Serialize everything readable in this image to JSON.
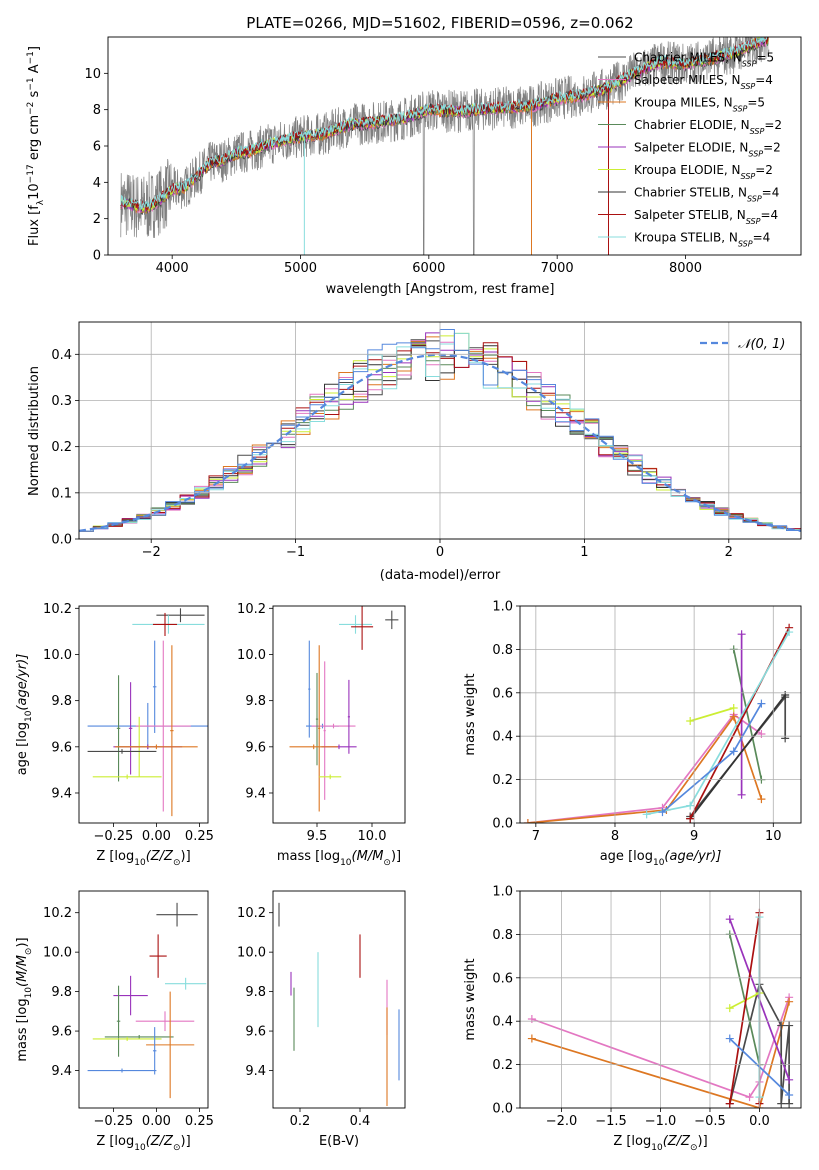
{
  "colors": {
    "grid": "#b0b0b0",
    "data_spectrum": "#7f7f7f",
    "gaussian": "#5588dd"
  },
  "chart_data": [
    {
      "id": "spectrum",
      "type": "line",
      "title": "PLATE=0266, MJD=51602, FIBERID=0596, z=0.062",
      "xlabel": "wavelength [Angstrom, rest frame]",
      "ylabel_main": "Flux [f",
      "ylabel_sub": "λ",
      "ylabel_rest": "10",
      "ylabel_exp": "−17",
      "ylabel_tail": " erg cm",
      "ylabel_exp2": "−2",
      "ylabel_s": " s",
      "ylabel_exp3": "−1",
      "ylabel_end": " A",
      "ylabel_exp4": "−1",
      "ylabel_close": "]",
      "xlim": [
        3500,
        8900
      ],
      "ylim": [
        0,
        12
      ],
      "xticks": [
        4000,
        5000,
        6000,
        7000,
        8000
      ],
      "yticks": [
        0,
        2,
        4,
        6,
        8,
        10
      ],
      "grid": false,
      "legend_position": "right",
      "series": [
        {
          "name": "Chabrier MILES, N",
          "sub": "SSP",
          "n": "=5",
          "color": "#4a4a4a"
        },
        {
          "name": "Salpeter MILES, N",
          "sub": "SSP",
          "n": "=4",
          "color": "#e377c2"
        },
        {
          "name": "Kroupa MILES, N",
          "sub": "SSP",
          "n": "=5",
          "color": "#dd7722"
        },
        {
          "name": "Chabrier ELODIE, N",
          "sub": "SSP",
          "n": "=2",
          "color": "#5a8a5a"
        },
        {
          "name": "Salpeter ELODIE, N",
          "sub": "SSP",
          "n": "=2",
          "color": "#9933bb"
        },
        {
          "name": "Kroupa ELODIE, N",
          "sub": "SSP",
          "n": "=2",
          "color": "#ccee33"
        },
        {
          "name": "Chabrier STELIB, N",
          "sub": "SSP",
          "n": "=4",
          "color": "#333333"
        },
        {
          "name": "Salpeter STELIB, N",
          "sub": "SSP",
          "n": "=4",
          "color": "#aa1111"
        },
        {
          "name": "Kroupa STELIB, N",
          "sub": "SSP",
          "n": "=4",
          "color": "#88dddd"
        }
      ],
      "continuum_model": {
        "wavelength": [
          3600,
          3700,
          3800,
          3900,
          4000,
          4100,
          4200,
          4300,
          4400,
          4500,
          4600,
          4800,
          5000,
          5200,
          5400,
          5600,
          5800,
          6000,
          6200,
          6400,
          6600,
          6800,
          7000,
          7200,
          7400,
          7600,
          7800,
          8000,
          8200,
          8400,
          8600
        ],
        "flux": [
          2.9,
          2.7,
          2.6,
          3.0,
          3.6,
          3.7,
          4.4,
          5.1,
          5.2,
          5.6,
          5.7,
          6.2,
          6.5,
          6.7,
          7.2,
          7.3,
          7.5,
          8.0,
          7.9,
          8.0,
          8.1,
          8.2,
          8.6,
          8.8,
          9.2,
          10.0,
          10.6,
          10.5,
          10.8,
          11.2,
          11.8
        ]
      },
      "data_noise": 1.2,
      "data_range": [
        3600,
        8650
      ]
    },
    {
      "id": "residual-hist",
      "type": "line",
      "xlabel": "(data-model)/error",
      "ylabel": "Normed distribution",
      "xlim": [
        -2.5,
        2.5
      ],
      "ylim": [
        0,
        0.47
      ],
      "xticks": [
        -2,
        -1,
        0,
        1,
        2
      ],
      "xtick_labels": [
        "−2",
        "−1",
        "0",
        "1",
        "2"
      ],
      "yticks": [
        0,
        0.1,
        0.2,
        0.3,
        0.4
      ],
      "ytick_labels": [
        "0.0",
        "0.1",
        "0.2",
        "0.3",
        "0.4"
      ],
      "grid": true,
      "legend_position": "top-right",
      "legend": [
        "𝒩(0, 1)"
      ],
      "bin_width": 0.1,
      "bin_start": -2.5,
      "bin_count": 50
    },
    {
      "id": "age-vs-z",
      "type": "scatter",
      "xlabel": "Z [log",
      "xlabel_sub": "10",
      "xlabel_rest": "(Z/Z",
      "xlabel_sun": "⊙",
      "xlabel_end": ")]",
      "ylabel": "age  [log",
      "ylabel_sub": "10",
      "ylabel_rest": "(age/yr)]",
      "xlim": [
        -0.45,
        0.3
      ],
      "ylim": [
        9.27,
        10.21
      ],
      "xticks": [
        -0.25,
        0.0,
        0.25
      ],
      "xtick_labels": [
        "−0.25",
        "0.00",
        "0.25"
      ],
      "yticks": [
        9.4,
        9.6,
        9.8,
        10.0,
        10.2
      ],
      "ytick_labels": [
        "9.4",
        "9.6",
        "9.8",
        "10.0",
        "10.2"
      ],
      "grid": false,
      "points": [
        {
          "x": 0.14,
          "y": 10.17,
          "xerr": 0.14,
          "yerr": 0.03,
          "color": "#4a4a4a"
        },
        {
          "x": 0.07,
          "y": 10.13,
          "xerr": 0.21,
          "yerr": 0.04,
          "color": "#88dddd"
        },
        {
          "x": 0.05,
          "y": 10.13,
          "xerr": 0.07,
          "yerr": 0.05,
          "color": "#aa1111"
        },
        {
          "x": -0.01,
          "y": 9.86,
          "xerr": 0.01,
          "yerr": 0.2,
          "color": "#5588dd"
        },
        {
          "x": -0.05,
          "y": 9.69,
          "xerr": 0.35,
          "yerr": 0.1,
          "color": "#5588dd"
        },
        {
          "x": 0.04,
          "y": 9.69,
          "xerr": 0.16,
          "yerr": 0.37,
          "color": "#e377c2"
        },
        {
          "x": 0.09,
          "y": 9.67,
          "xerr": 0.01,
          "yerr": 0.37,
          "color": "#dd7722"
        },
        {
          "x": -0.22,
          "y": 9.68,
          "xerr": 0.01,
          "yerr": 0.23,
          "color": "#5a8a5a"
        },
        {
          "x": -0.15,
          "y": 9.68,
          "xerr": 0.01,
          "yerr": 0.2,
          "color": "#9933bb"
        },
        {
          "x": -0.1,
          "y": 9.6,
          "xerr": 0.13,
          "yerr": 0.13,
          "color": "#ccee33"
        },
        {
          "x": -0.05,
          "y": 9.6,
          "xerr": 0.2,
          "yerr": 0.01,
          "color": "#9933bb"
        },
        {
          "x": 0.0,
          "y": 9.6,
          "xerr": 0.24,
          "yerr": 0.01,
          "color": "#dd7722"
        },
        {
          "x": -0.2,
          "y": 9.58,
          "xerr": 0.2,
          "yerr": 0.01,
          "color": "#4a4a4a"
        },
        {
          "x": -0.17,
          "y": 9.47,
          "xerr": 0.2,
          "yerr": 0.01,
          "color": "#ccee33"
        }
      ]
    },
    {
      "id": "age-vs-mass",
      "type": "scatter",
      "xlabel": "mass [log",
      "xlabel_sub": "10",
      "xlabel_rest": "(M/M",
      "xlabel_sun": "⊙",
      "xlabel_end": ")]",
      "xlim": [
        9.1,
        10.3
      ],
      "ylim": [
        9.27,
        10.21
      ],
      "xticks": [
        9.5,
        10.0
      ],
      "xtick_labels": [
        "9.5",
        "10.0"
      ],
      "yticks": [
        9.4,
        9.6,
        9.8,
        10.0,
        10.2
      ],
      "ytick_labels": [
        "9.4",
        "9.6",
        "9.8",
        "10.0",
        "10.2"
      ],
      "grid": false,
      "points": [
        {
          "x": 10.18,
          "y": 10.15,
          "xerr": 0.06,
          "yerr": 0.04,
          "color": "#4a4a4a"
        },
        {
          "x": 9.85,
          "y": 10.13,
          "xerr": 0.15,
          "yerr": 0.04,
          "color": "#88dddd"
        },
        {
          "x": 9.91,
          "y": 10.12,
          "xerr": 0.1,
          "yerr": 0.1,
          "color": "#aa1111"
        },
        {
          "x": 9.43,
          "y": 9.85,
          "xerr": 0.01,
          "yerr": 0.21,
          "color": "#5588dd"
        },
        {
          "x": 9.55,
          "y": 9.69,
          "xerr": 0.15,
          "yerr": 0.01,
          "color": "#5588dd"
        },
        {
          "x": 9.65,
          "y": 9.69,
          "xerr": 0.2,
          "yerr": 0.01,
          "color": "#e377c2"
        },
        {
          "x": 9.52,
          "y": 9.68,
          "xerr": 0.01,
          "yerr": 0.36,
          "color": "#dd7722"
        },
        {
          "x": 9.57,
          "y": 9.67,
          "xerr": 0.01,
          "yerr": 0.3,
          "color": "#e377c2"
        },
        {
          "x": 9.5,
          "y": 9.72,
          "xerr": 0.01,
          "yerr": 0.2,
          "color": "#5a8a5a"
        },
        {
          "x": 9.79,
          "y": 9.73,
          "xerr": 0.01,
          "yerr": 0.16,
          "color": "#9933bb"
        },
        {
          "x": 9.7,
          "y": 9.6,
          "xerr": 0.16,
          "yerr": 0.01,
          "color": "#9933bb"
        },
        {
          "x": 9.47,
          "y": 9.6,
          "xerr": 0.22,
          "yerr": 0.01,
          "color": "#dd7722"
        },
        {
          "x": 9.62,
          "y": 9.47,
          "xerr": 0.1,
          "yerr": 0.01,
          "color": "#ccee33"
        }
      ]
    },
    {
      "id": "weight-vs-age",
      "type": "line",
      "xlabel": "age  [log",
      "xlabel_sub": "10",
      "xlabel_rest": "(age/yr)]",
      "ylabel": "mass weight",
      "xlim": [
        6.8,
        10.35
      ],
      "ylim": [
        0,
        1
      ],
      "xticks": [
        7,
        8,
        9,
        10
      ],
      "yticks": [
        0,
        0.2,
        0.4,
        0.6,
        0.8,
        1.0
      ],
      "ytick_labels": [
        "0.0",
        "0.2",
        "0.4",
        "0.6",
        "0.8",
        "1.0"
      ],
      "grid": true,
      "series": [
        {
          "color": "#4a4a4a",
          "x": [
            8.95,
            10.15,
            10.15
          ],
          "y": [
            0.03,
            0.58,
            0.39
          ]
        },
        {
          "color": "#e377c2",
          "x": [
            6.9,
            8.6,
            9.5,
            9.85
          ],
          "y": [
            0.0,
            0.07,
            0.5,
            0.41
          ]
        },
        {
          "color": "#dd7722",
          "x": [
            6.9,
            8.65,
            9.5,
            9.85
          ],
          "y": [
            0.0,
            0.06,
            0.49,
            0.11
          ]
        },
        {
          "color": "#5a8a5a",
          "x": [
            9.5,
            9.85
          ],
          "y": [
            0.8,
            0.2
          ]
        },
        {
          "color": "#9933bb",
          "x": [
            9.6,
            9.6
          ],
          "y": [
            0.87,
            0.13
          ]
        },
        {
          "color": "#ccee33",
          "x": [
            8.95,
            9.5
          ],
          "y": [
            0.47,
            0.53
          ]
        },
        {
          "color": "#333333",
          "x": [
            8.95,
            10.15
          ],
          "y": [
            0.02,
            0.59
          ]
        },
        {
          "color": "#aa1111",
          "x": [
            8.95,
            10.2
          ],
          "y": [
            0.02,
            0.9
          ]
        },
        {
          "color": "#88dddd",
          "x": [
            8.4,
            8.95,
            10.2
          ],
          "y": [
            0.04,
            0.08,
            0.88
          ]
        },
        {
          "color": "#5588dd",
          "x": [
            8.6,
            9.5,
            9.85
          ],
          "y": [
            0.05,
            0.33,
            0.55
          ]
        }
      ]
    },
    {
      "id": "mass-vs-z",
      "type": "scatter",
      "xlabel": "Z [log",
      "xlabel_sub": "10",
      "xlabel_rest": "(Z/Z",
      "xlabel_sun": "⊙",
      "xlabel_end": ")]",
      "ylabel": "mass [log",
      "ylabel_sub": "10",
      "ylabel_rest": "(M/M",
      "ylabel_sun": "⊙",
      "ylabel_end": ")]",
      "xlim": [
        -0.45,
        0.3
      ],
      "ylim": [
        9.21,
        10.31
      ],
      "xticks": [
        -0.25,
        0.0,
        0.25
      ],
      "xtick_labels": [
        "−0.25",
        "0.00",
        "0.25"
      ],
      "yticks": [
        9.4,
        9.6,
        9.8,
        10.0,
        10.2
      ],
      "ytick_labels": [
        "9.4",
        "9.6",
        "9.8",
        "10.0",
        "10.2"
      ],
      "grid": false,
      "points": [
        {
          "x": 0.12,
          "y": 10.19,
          "xerr": 0.12,
          "yerr": 0.06,
          "color": "#4a4a4a"
        },
        {
          "x": 0.01,
          "y": 9.98,
          "xerr": 0.05,
          "yerr": 0.11,
          "color": "#aa1111"
        },
        {
          "x": 0.17,
          "y": 9.84,
          "xerr": 0.12,
          "yerr": 0.03,
          "color": "#88dddd"
        },
        {
          "x": -0.15,
          "y": 9.78,
          "xerr": 0.1,
          "yerr": 0.1,
          "color": "#9933bb"
        },
        {
          "x": -0.22,
          "y": 9.65,
          "xerr": 0.01,
          "yerr": 0.18,
          "color": "#5a8a5a"
        },
        {
          "x": 0.05,
          "y": 9.65,
          "xerr": 0.17,
          "yerr": 0.05,
          "color": "#e377c2"
        },
        {
          "x": -0.1,
          "y": 9.57,
          "xerr": 0.2,
          "yerr": 0.01,
          "color": "#5a8a5a"
        },
        {
          "x": 0.08,
          "y": 9.53,
          "xerr": 0.14,
          "yerr": 0.27,
          "color": "#dd7722"
        },
        {
          "x": -0.17,
          "y": 9.56,
          "xerr": 0.2,
          "yerr": 0.01,
          "color": "#ccee33"
        },
        {
          "x": -0.2,
          "y": 9.4,
          "xerr": 0.2,
          "yerr": 0.01,
          "color": "#5588dd"
        },
        {
          "x": -0.01,
          "y": 9.5,
          "xerr": 0.01,
          "yerr": 0.12,
          "color": "#5588dd"
        }
      ]
    },
    {
      "id": "mass-vs-ebv",
      "type": "scatter",
      "xlabel": "E(B-V)",
      "xlim": [
        0.11,
        0.55
      ],
      "ylim": [
        9.21,
        10.31
      ],
      "xticks": [
        0.2,
        0.4
      ],
      "xtick_labels": [
        "0.2",
        "0.4"
      ],
      "yticks": [
        9.4,
        9.6,
        9.8,
        10.0,
        10.2
      ],
      "ytick_labels": [
        "9.4",
        "9.6",
        "9.8",
        "10.0",
        "10.2"
      ],
      "grid": false,
      "points": [
        {
          "x": 0.13,
          "y": 10.19,
          "xerr": 0.0,
          "yerr": 0.06,
          "color": "#4a4a4a"
        },
        {
          "x": 0.17,
          "y": 9.84,
          "xerr": 0.0,
          "yerr": 0.06,
          "color": "#9933bb"
        },
        {
          "x": 0.18,
          "y": 9.66,
          "xerr": 0.0,
          "yerr": 0.16,
          "color": "#5a8a5a"
        },
        {
          "x": 0.26,
          "y": 9.81,
          "xerr": 0.0,
          "yerr": 0.19,
          "color": "#88dddd"
        },
        {
          "x": 0.4,
          "y": 9.98,
          "xerr": 0.0,
          "yerr": 0.11,
          "color": "#aa1111"
        },
        {
          "x": 0.49,
          "y": 9.72,
          "xerr": 0.0,
          "yerr": 0.14,
          "color": "#e377c2"
        },
        {
          "x": 0.49,
          "y": 9.47,
          "xerr": 0.0,
          "yerr": 0.25,
          "color": "#dd7722"
        },
        {
          "x": 0.53,
          "y": 9.53,
          "xerr": 0.0,
          "yerr": 0.18,
          "color": "#5588dd"
        }
      ]
    },
    {
      "id": "weight-vs-z",
      "type": "line",
      "xlabel": "Z [log",
      "xlabel_sub": "10",
      "xlabel_rest": "(Z/Z",
      "xlabel_sun": "⊙",
      "xlabel_end": ")]",
      "ylabel": "mass weight",
      "xlim": [
        -2.42,
        0.42
      ],
      "ylim": [
        0,
        1
      ],
      "xticks": [
        -2.0,
        -1.5,
        -1.0,
        -0.5,
        0.0
      ],
      "xtick_labels": [
        "−2.0",
        "−1.5",
        "−1.0",
        "−0.5",
        "0.0"
      ],
      "yticks": [
        0,
        0.2,
        0.4,
        0.6,
        0.8,
        1.0
      ],
      "ytick_labels": [
        "0.0",
        "0.2",
        "0.4",
        "0.6",
        "0.8",
        "1.0"
      ],
      "grid": true,
      "series": [
        {
          "color": "#e377c2",
          "x": [
            -2.3,
            -0.1,
            0.0,
            0.3
          ],
          "y": [
            0.41,
            0.05,
            0.12,
            0.51
          ]
        },
        {
          "color": "#dd7722",
          "x": [
            -2.3,
            0.0,
            0.3
          ],
          "y": [
            0.32,
            0.0,
            0.49
          ]
        },
        {
          "color": "#4a4a4a",
          "x": [
            -0.3,
            0.0,
            0.22,
            0.22,
            0.3,
            0.3
          ],
          "y": [
            0.02,
            0.57,
            0.38,
            0.02,
            0.38,
            0.02
          ]
        },
        {
          "color": "#9933bb",
          "x": [
            -0.3,
            0.3
          ],
          "y": [
            0.87,
            0.13
          ]
        },
        {
          "color": "#5a8a5a",
          "x": [
            -0.3,
            0.0
          ],
          "y": [
            0.8,
            0.2
          ]
        },
        {
          "color": "#ccee33",
          "x": [
            -0.3,
            0.0
          ],
          "y": [
            0.46,
            0.53
          ]
        },
        {
          "color": "#aa1111",
          "x": [
            -0.3,
            0.0,
            0.0
          ],
          "y": [
            0.02,
            0.9,
            0.02
          ]
        },
        {
          "color": "#88dddd",
          "x": [
            0.0,
            0.0
          ],
          "y": [
            0.88,
            0.05
          ]
        },
        {
          "color": "#5588dd",
          "x": [
            -0.3,
            0.3
          ],
          "y": [
            0.32,
            0.06
          ]
        }
      ]
    }
  ]
}
